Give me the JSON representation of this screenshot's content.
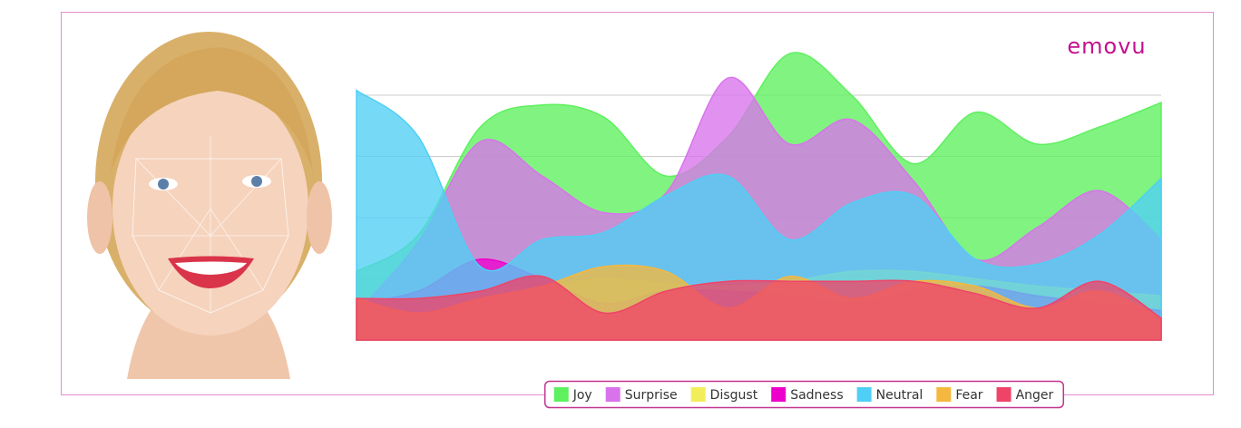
{
  "logo": "emovu",
  "chart_data": {
    "type": "area",
    "ylim": [
      0,
      125
    ],
    "yticks": [
      0,
      25,
      50,
      75,
      100
    ],
    "grid": true,
    "series": [
      {
        "name": "Joy",
        "color": "#5ef05e",
        "values": [
          28,
          43,
          87,
          96,
          91,
          67,
          83,
          117,
          100,
          72,
          93,
          80,
          87,
          97
        ]
      },
      {
        "name": "Surprise",
        "color": "#d873ec",
        "values": [
          11,
          40,
          81,
          67,
          52,
          60,
          107,
          80,
          90,
          65,
          33,
          46,
          61,
          41
        ]
      },
      {
        "name": "Disgust",
        "color": "#f2ee5a",
        "values": [
          15,
          17,
          20,
          22,
          25,
          23,
          22,
          24,
          28,
          28,
          25,
          22,
          20,
          18
        ]
      },
      {
        "name": "Sadness",
        "color": "#ee00cc",
        "values": [
          15,
          20,
          33,
          25,
          15,
          20,
          20,
          18,
          15,
          20,
          22,
          18,
          15,
          12
        ]
      },
      {
        "name": "Neutral",
        "color": "#4fcff5",
        "values": [
          102,
          83,
          30,
          41,
          44,
          59,
          67,
          41,
          56,
          59,
          33,
          31,
          43,
          66
        ]
      },
      {
        "name": "Fear",
        "color": "#f5b83e",
        "values": [
          17,
          11,
          17,
          22,
          30,
          28,
          13,
          26,
          17,
          24,
          22,
          13,
          20,
          9
        ]
      },
      {
        "name": "Anger",
        "color": "#ef4468",
        "values": [
          17,
          17,
          20,
          26,
          11,
          20,
          24,
          24,
          24,
          24,
          19,
          13,
          24,
          9
        ]
      }
    ]
  }
}
